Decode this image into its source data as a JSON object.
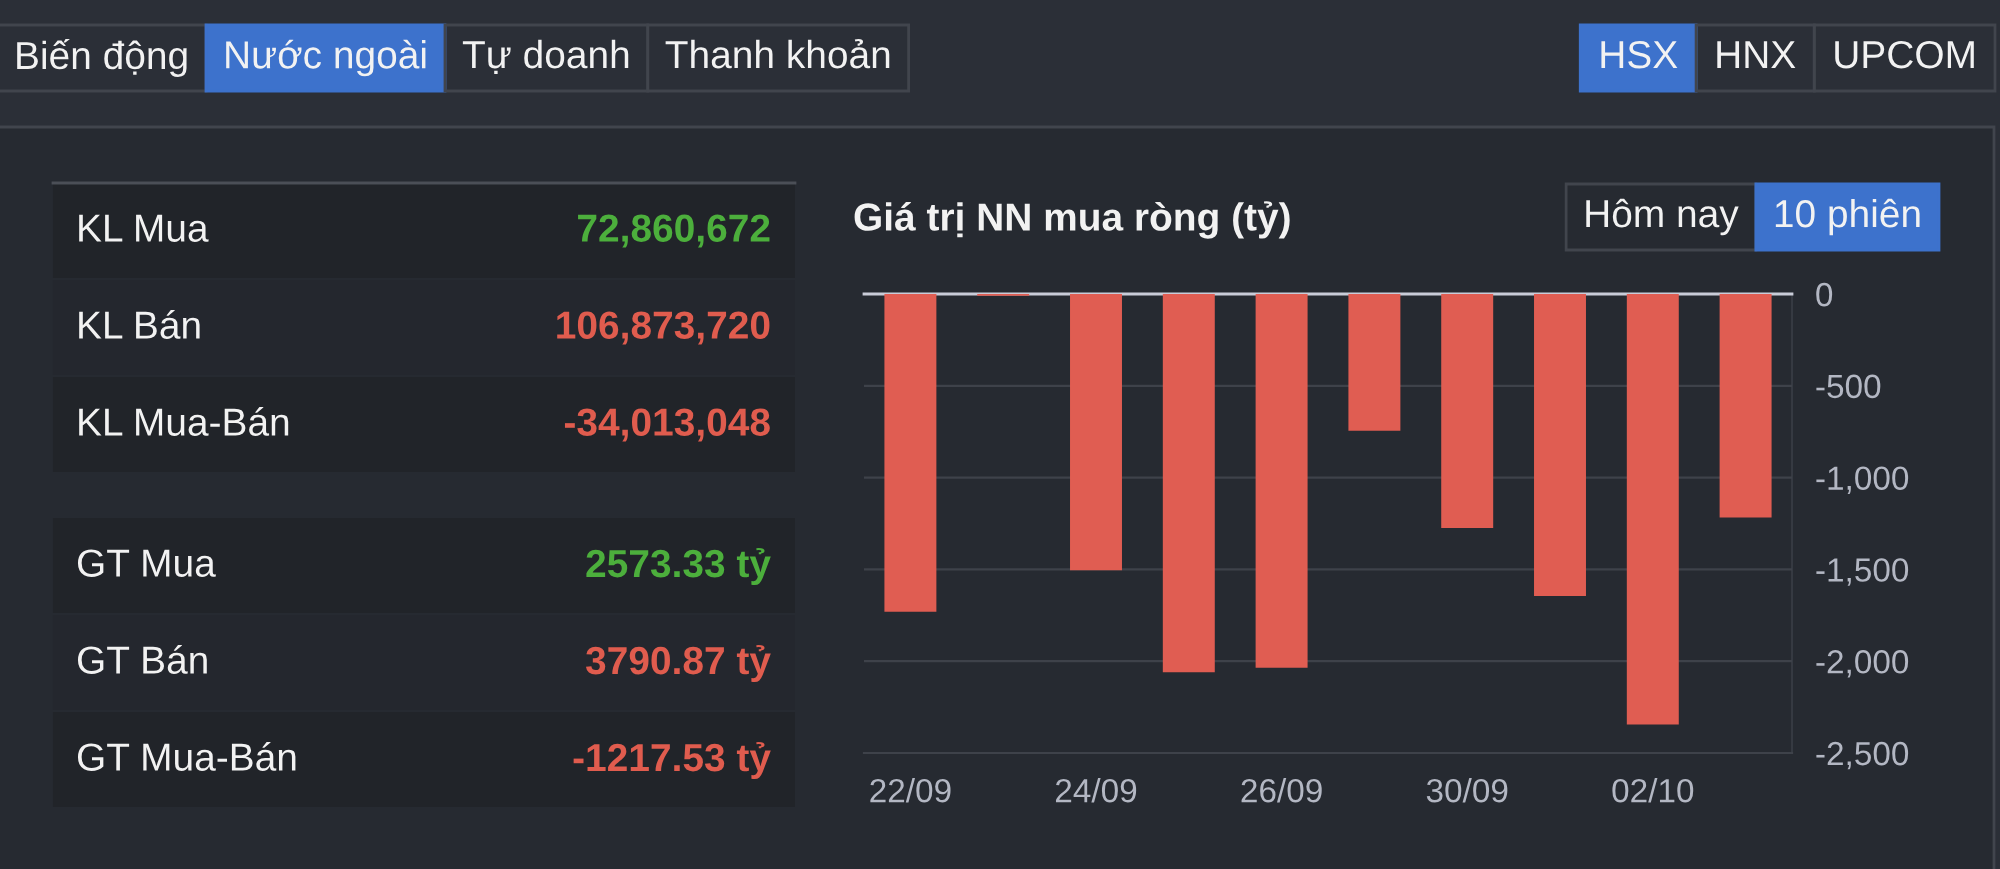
{
  "chart_data": [
    {
      "type": "other",
      "annotations": [
        "Biến động",
        "Nước ngoài",
        "Tự doanh",
        "Thanh khoản",
        "HSX",
        "HNX",
        "UPCOM"
      ],
      "categories": [
        "KL Mua",
        "KL Bán",
        "KL Mua-Bán",
        "GT Mua",
        "GT Bán",
        "GT Mua-Bán"
      ],
      "value_labels": [
        "72,860,672",
        "106,873,720",
        "-34,013,048",
        "2573.33 tỷ",
        "3790.87 tỷ",
        "-1217.53 tỷ"
      ],
      "colors": [
        "#4caf3c",
        "#e05c4e",
        "#e05c4e",
        "#4caf3c",
        "#e05c4e",
        "#e05c4e"
      ]
    },
    {
      "type": "bar",
      "title": "Giá trị NN mua ròng (tỷ)",
      "categories": [
        "22/09",
        null,
        "24/09",
        null,
        "26/09",
        null,
        "30/09",
        null,
        "02/10",
        null
      ],
      "values": [
        -1730,
        -10,
        -1505,
        -2060,
        -2035,
        -745,
        -1275,
        -1645,
        -2345,
        -1218
      ],
      "color": "#e05d52",
      "ylim": [
        -2500,
        0
      ],
      "yticks": [
        0,
        -500,
        {
          "value": -1000,
          "label": "-1,000"
        },
        {
          "value": -1500,
          "label": "-1,500"
        },
        {
          "value": -2000,
          "label": "-2,000"
        },
        {
          "value": -2500,
          "label": "-2,500"
        }
      ],
      "grid": "y",
      "annotations": [
        "Hôm nay",
        "10 phiên"
      ]
    }
  ]
}
